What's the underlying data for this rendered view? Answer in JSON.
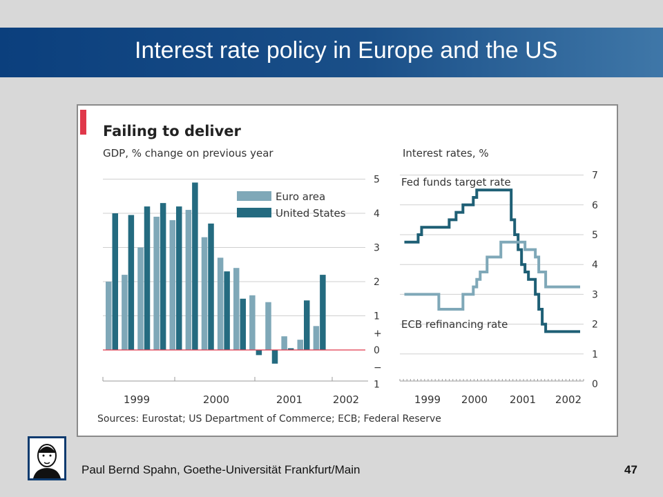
{
  "slide": {
    "title": "Interest rate policy in Europe and the US",
    "author": "Paul Bernd Spahn, Goethe-Universität Frankfurt/Main",
    "page_number": "47",
    "logo_icon": "goethe-portrait-icon"
  },
  "colors": {
    "title_bar_start": "#0b3f7d",
    "title_bar_end": "#3f77a8",
    "euro_area": "#7fa8b8",
    "united_states": "#246b80",
    "fed_line": "#1e5f75",
    "ecb_line": "#7fa8b8",
    "accent_red": "#e0384a"
  },
  "chart_data": [
    {
      "type": "bar",
      "title": "Failing to deliver",
      "subtitle": "GDP, % change on previous year",
      "ylim": [
        -1,
        5
      ],
      "yticks": [
        "5",
        "4",
        "3",
        "2",
        "1",
        "+",
        "0",
        "−",
        "1"
      ],
      "x_tick_labels": [
        "1999",
        "2000",
        "2001",
        "2002"
      ],
      "categories": [
        "1998 Q2",
        "1998 Q3",
        "1998 Q4",
        "1999 Q1",
        "1999 Q2",
        "1999 Q3",
        "1999 Q4",
        "2000 Q1",
        "2000 Q2",
        "2000 Q3",
        "2000 Q4",
        "2001 Q1",
        "2001 Q2",
        "2001 Q3",
        "2001 Q4",
        "2002 Q1"
      ],
      "series": [
        {
          "name": "Euro area",
          "values": [
            2.0,
            2.2,
            3.0,
            3.9,
            3.8,
            4.1,
            3.3,
            2.7,
            2.4,
            1.6,
            1.4,
            0.4,
            0.3,
            0.7,
            null,
            null
          ]
        },
        {
          "name": "United States",
          "values": [
            4.0,
            3.95,
            4.2,
            4.3,
            4.2,
            4.9,
            3.7,
            2.3,
            1.5,
            -0.15,
            -0.4,
            0.05,
            1.45,
            2.2,
            null,
            null
          ]
        }
      ],
      "legend_position": "top-right",
      "grid": true
    },
    {
      "type": "line",
      "title": "Interest rates, %",
      "ylim": [
        0,
        7
      ],
      "yticks": [
        "7",
        "6",
        "5",
        "4",
        "3",
        "2",
        "1",
        "0"
      ],
      "x_tick_labels": [
        "1999",
        "2000",
        "2001",
        "2002"
      ],
      "series": [
        {
          "name": "Fed funds target rate",
          "x": [
            "1998-06",
            "1998-10",
            "1998-11",
            "1999-07",
            "1999-09",
            "1999-11",
            "2000-02",
            "2000-03",
            "2000-05",
            "2001-01",
            "2001-02",
            "2001-03",
            "2001-04",
            "2001-05",
            "2001-06",
            "2001-08",
            "2001-09",
            "2001-10",
            "2001-11",
            "2001-12",
            "2002-09"
          ],
          "y": [
            4.75,
            5.0,
            5.25,
            5.5,
            5.75,
            6.0,
            6.25,
            6.5,
            6.5,
            5.5,
            5.0,
            4.5,
            4.0,
            3.75,
            3.5,
            3.0,
            2.5,
            2.0,
            1.75,
            1.75,
            1.75
          ]
        },
        {
          "name": "ECB refinancing rate",
          "x": [
            "1998-06",
            "1999-01",
            "1999-04",
            "1999-11",
            "2000-02",
            "2000-03",
            "2000-04",
            "2000-06",
            "2000-10",
            "2001-05",
            "2001-08",
            "2001-09",
            "2001-11",
            "2002-09"
          ],
          "y": [
            3.0,
            3.0,
            2.5,
            3.0,
            3.25,
            3.5,
            3.75,
            4.25,
            4.75,
            4.5,
            4.25,
            3.75,
            3.25,
            3.25
          ]
        }
      ],
      "grid": true
    }
  ],
  "source": "Sources: Eurostat; US Department of Commerce; ECB; Federal Reserve"
}
